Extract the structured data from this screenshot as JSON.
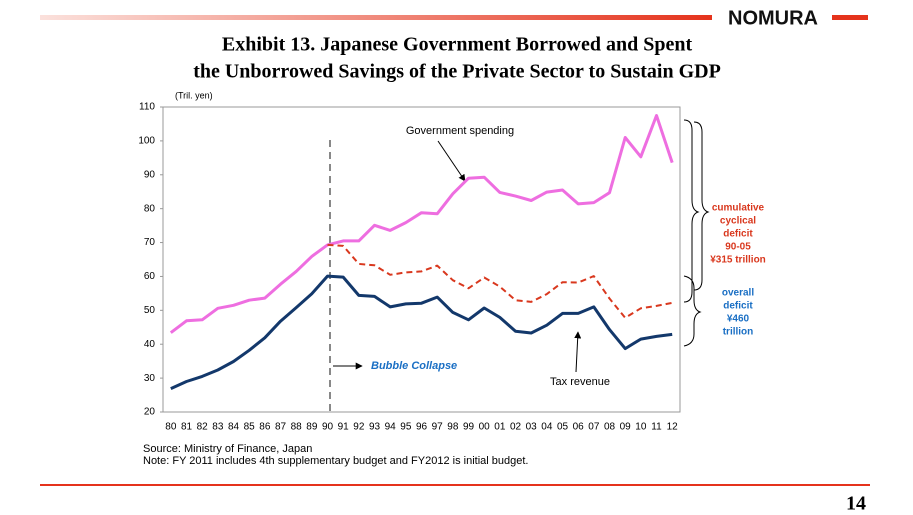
{
  "header": {
    "logo": "NOMURA",
    "page_number": "14"
  },
  "chart_data": {
    "type": "line",
    "title": [
      "Exhibit 13.  Japanese Government Borrowed and Spent",
      "the Unborrowed Savings of the Private Sector to Sustain GDP"
    ],
    "y_unit": "(Tril. yen)",
    "categories": [
      "80",
      "81",
      "82",
      "83",
      "84",
      "85",
      "86",
      "87",
      "88",
      "89",
      "90",
      "91",
      "92",
      "93",
      "94",
      "95",
      "96",
      "97",
      "98",
      "99",
      "00",
      "01",
      "02",
      "03",
      "04",
      "05",
      "06",
      "07",
      "08",
      "09",
      "10",
      "11",
      "12"
    ],
    "series": [
      {
        "name": "Government spending",
        "color": "#ee6ee0",
        "dashed": false,
        "values": [
          43.4,
          46.9,
          47.2,
          50.6,
          51.5,
          53.0,
          53.6,
          57.7,
          61.5,
          65.9,
          69.3,
          70.5,
          70.5,
          75.1,
          73.6,
          75.9,
          78.8,
          78.5,
          84.4,
          89.0,
          89.3,
          84.8,
          83.7,
          82.4,
          84.9,
          85.5,
          81.4,
          81.8,
          84.7,
          101.0,
          95.3,
          107.5,
          93.6
        ]
      },
      {
        "color": "#d9381e",
        "dashed": true,
        "values": [
          null,
          null,
          null,
          null,
          null,
          null,
          null,
          null,
          null,
          null,
          69.3,
          69.0,
          63.7,
          63.3,
          60.5,
          61.2,
          61.5,
          63.2,
          58.9,
          56.5,
          59.7,
          57.0,
          53.0,
          52.5,
          54.8,
          58.3,
          58.2,
          60.1,
          53.5,
          47.8,
          50.6,
          51.3,
          52.2
        ]
      },
      {
        "name": "Tax revenue",
        "color": "#13386b",
        "dashed": false,
        "values": [
          26.9,
          29.0,
          30.5,
          32.4,
          34.9,
          38.2,
          41.9,
          46.8,
          50.8,
          54.9,
          60.1,
          59.8,
          54.4,
          54.1,
          51.0,
          51.9,
          52.1,
          53.9,
          49.4,
          47.2,
          50.7,
          47.9,
          43.8,
          43.3,
          45.6,
          49.1,
          49.1,
          51.0,
          44.3,
          38.7,
          41.5,
          42.3,
          42.9
        ]
      }
    ],
    "ylim": [
      20,
      110
    ],
    "yticks": [
      20,
      30,
      40,
      50,
      60,
      70,
      80,
      90,
      100,
      110
    ],
    "event_label": "Bubble Collapse",
    "cyclical_deficit_label": [
      "cumulative",
      "cyclical",
      "deficit",
      "90-05",
      "¥315 trillion"
    ],
    "overall_deficit_label": [
      "overall",
      "deficit",
      "¥460",
      "trillion"
    ],
    "source": "Source: Ministry of Finance, Japan",
    "note": "Note: FY 2011 includes 4th supplementary budget and FY2012 is initial budget."
  }
}
